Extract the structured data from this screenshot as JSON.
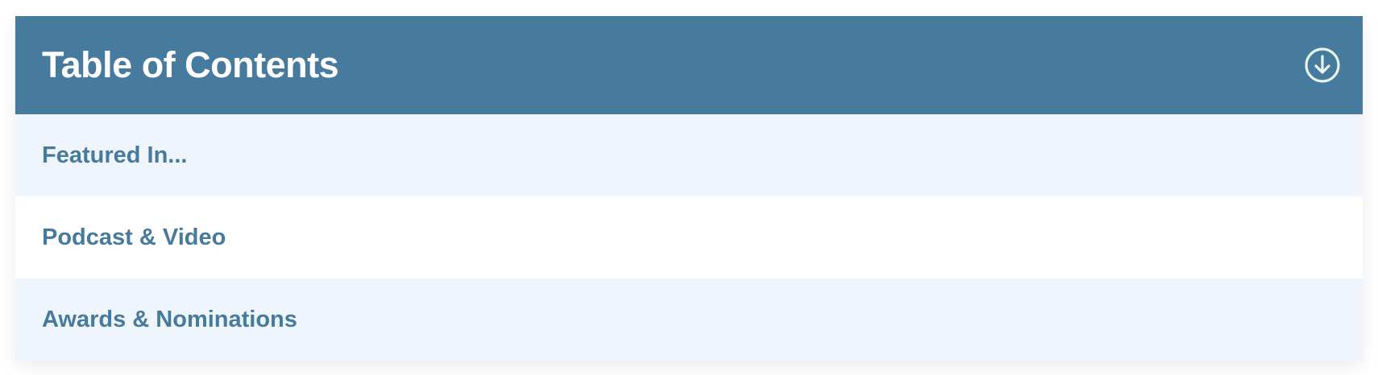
{
  "toc": {
    "title": "Table of Contents",
    "toggle_icon": "circle-arrow-down-icon",
    "colors": {
      "header_bg": "#467b9d",
      "item_text": "#467b9d",
      "alt_row_bg": "#eff5fc"
    },
    "items": [
      {
        "label": "Featured In..."
      },
      {
        "label": "Podcast & Video"
      },
      {
        "label": "Awards & Nominations"
      }
    ]
  }
}
